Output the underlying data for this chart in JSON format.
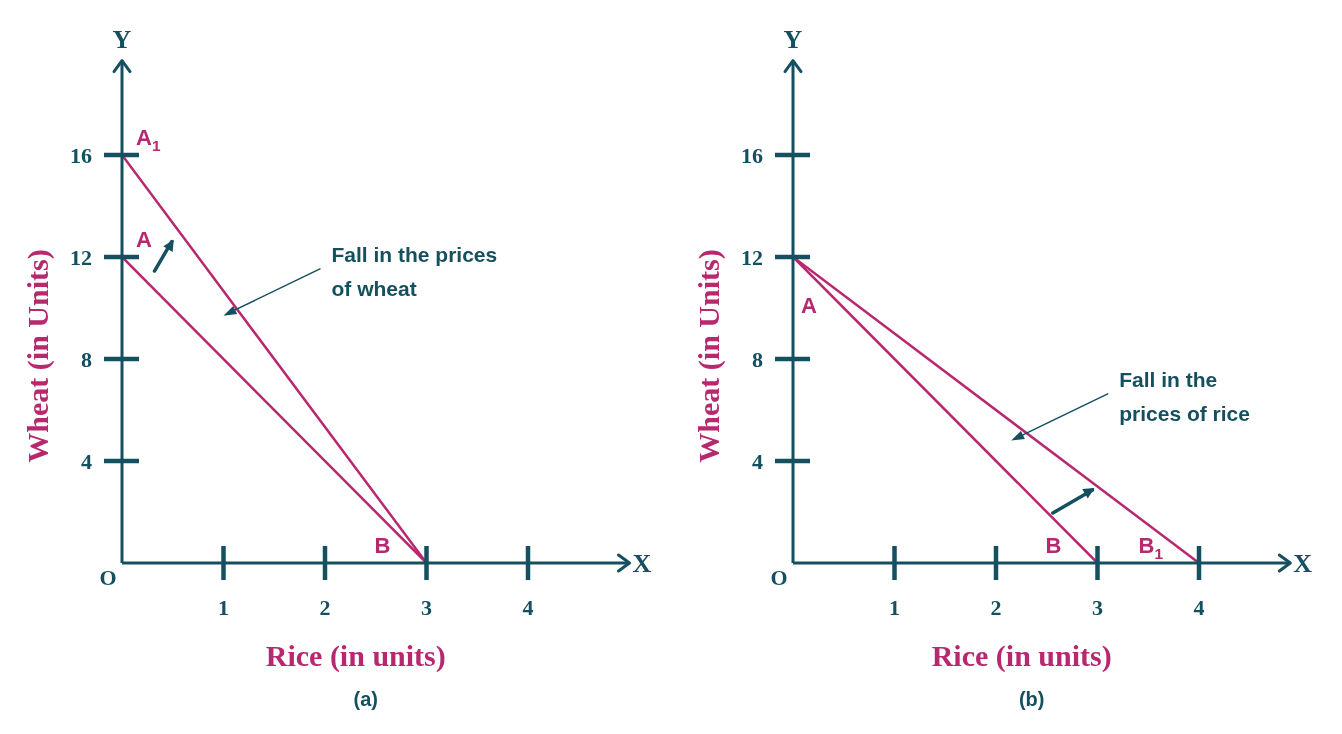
{
  "chart_data": [
    {
      "type": "line",
      "title": "(a)",
      "xlabel": "Rice (in units)",
      "ylabel": "Wheat (in Units)",
      "xlim": [
        0,
        5
      ],
      "ylim": [
        0,
        19.7
      ],
      "xticks": [
        1,
        2,
        3,
        4
      ],
      "yticks": [
        4,
        8,
        12,
        16
      ],
      "series": [
        {
          "x": [
            0,
            3
          ],
          "values": [
            12,
            0
          ],
          "color": "#b8286f"
        },
        {
          "x": [
            0,
            3
          ],
          "values": [
            16,
            0
          ],
          "color": "#b8286f"
        }
      ],
      "annotations": [
        {
          "text": "A$_{1}$",
          "x": 0,
          "y": 16
        },
        {
          "text": "A",
          "x": 0,
          "y": 12
        },
        {
          "text": "B",
          "x": 3,
          "y": 0
        },
        "Fall in the prices\nof wheat",
        "X",
        "Y",
        "O"
      ]
    },
    {
      "type": "line",
      "title": "(b)",
      "xlabel": "Rice (in units)",
      "ylabel": "Wheat (in Units)",
      "xlim": [
        0,
        4.9
      ],
      "ylim": [
        0,
        19.7
      ],
      "xticks": [
        1,
        2,
        3,
        4
      ],
      "yticks": [
        4,
        8,
        12,
        16
      ],
      "series": [
        {
          "x": [
            0,
            3
          ],
          "values": [
            12,
            0
          ],
          "color": "#b8286f"
        },
        {
          "x": [
            0,
            4
          ],
          "values": [
            12,
            0
          ],
          "color": "#b8286f"
        }
      ],
      "annotations": [
        {
          "text": "A",
          "x": 0,
          "y": 12
        },
        {
          "text": "B",
          "x": 3,
          "y": 0
        },
        {
          "text": "B$_{1}$",
          "x": 4,
          "y": 0
        },
        "Fall in the\nprices of rice",
        "X",
        "Y",
        "O"
      ]
    }
  ]
}
